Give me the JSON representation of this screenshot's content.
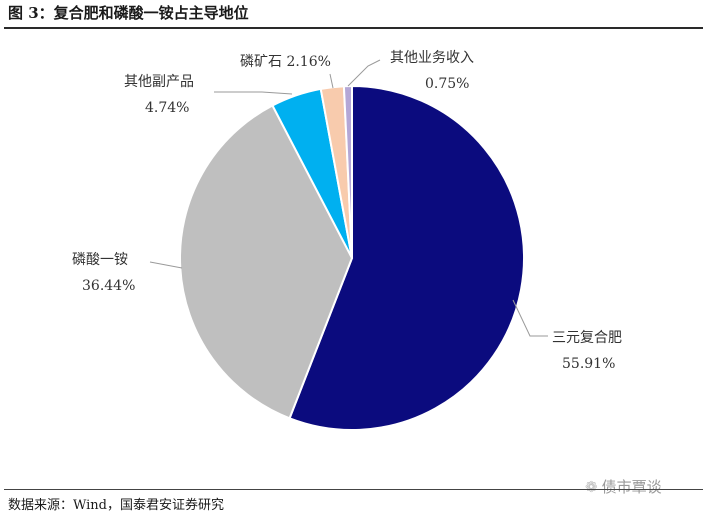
{
  "title": "图 3：复合肥和磷酸一铵占主导地位",
  "source": "数据来源：Wind，国泰君安证券研究",
  "watermark": "债市覃谈",
  "chart_data": {
    "type": "pie",
    "title": "",
    "slices": [
      {
        "label": "三元复合肥",
        "value": 55.91,
        "display": "55.91%",
        "color": "#0b0b7e"
      },
      {
        "label": "磷酸一铵",
        "value": 36.44,
        "display": "36.44%",
        "color": "#bfbfbf"
      },
      {
        "label": "其他副产品",
        "value": 4.74,
        "display": "4.74%",
        "color": "#00b0f0"
      },
      {
        "label": "磷矿石",
        "value": 2.16,
        "display": "2.16%",
        "color": "#f8cbad"
      },
      {
        "label": "其他业务收入",
        "value": 0.75,
        "display": "0.75%",
        "color": "#b4a7d6"
      }
    ],
    "start_angle_deg": 0,
    "direction": "clockwise",
    "legend": "none"
  }
}
